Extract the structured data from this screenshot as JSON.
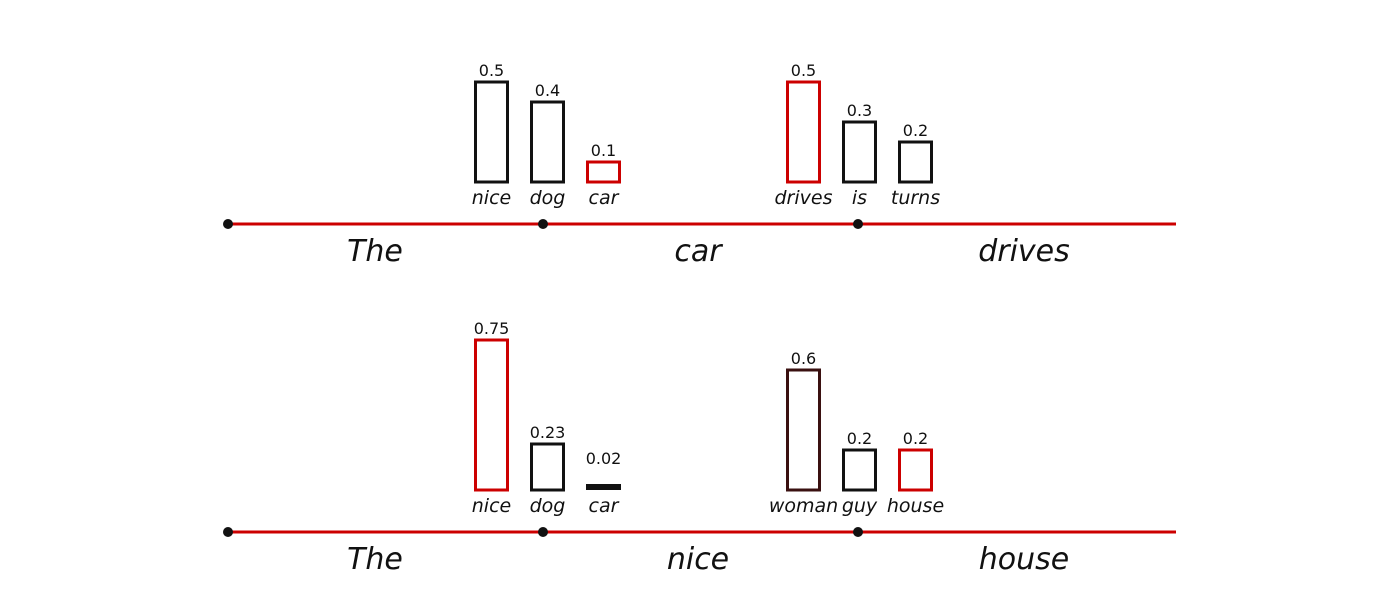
{
  "colors": {
    "timeline": "#cc0000",
    "node": "#111111",
    "bar_default": "#111111",
    "bar_selected": "#cc0000"
  },
  "rows": [
    {
      "words": [
        "The",
        "car",
        "drives"
      ],
      "groups": [
        {
          "bars": [
            {
              "label": "nice",
              "value": 0.5,
              "value_text": "0.5",
              "color": "#111111"
            },
            {
              "label": "dog",
              "value": 0.4,
              "value_text": "0.4",
              "color": "#111111"
            },
            {
              "label": "car",
              "value": 0.1,
              "value_text": "0.1",
              "color": "#cc0000"
            }
          ]
        },
        {
          "bars": [
            {
              "label": "drives",
              "value": 0.5,
              "value_text": "0.5",
              "color": "#cc0000"
            },
            {
              "label": "is",
              "value": 0.3,
              "value_text": "0.3",
              "color": "#111111"
            },
            {
              "label": "turns",
              "value": 0.2,
              "value_text": "0.2",
              "color": "#111111"
            }
          ]
        }
      ]
    },
    {
      "words": [
        "The",
        "nice",
        "house"
      ],
      "groups": [
        {
          "bars": [
            {
              "label": "nice",
              "value": 0.75,
              "value_text": "0.75",
              "color": "#cc0000"
            },
            {
              "label": "dog",
              "value": 0.23,
              "value_text": "0.23",
              "color": "#111111"
            },
            {
              "label": "car",
              "value": 0.02,
              "value_text": "0.02",
              "color": "#111111"
            }
          ]
        },
        {
          "bars": [
            {
              "label": "woman",
              "value": 0.6,
              "value_text": "0.6",
              "color": "#3a1010"
            },
            {
              "label": "guy",
              "value": 0.2,
              "value_text": "0.2",
              "color": "#111111"
            },
            {
              "label": "house",
              "value": 0.2,
              "value_text": "0.2",
              "color": "#cc0000"
            }
          ]
        }
      ]
    }
  ]
}
